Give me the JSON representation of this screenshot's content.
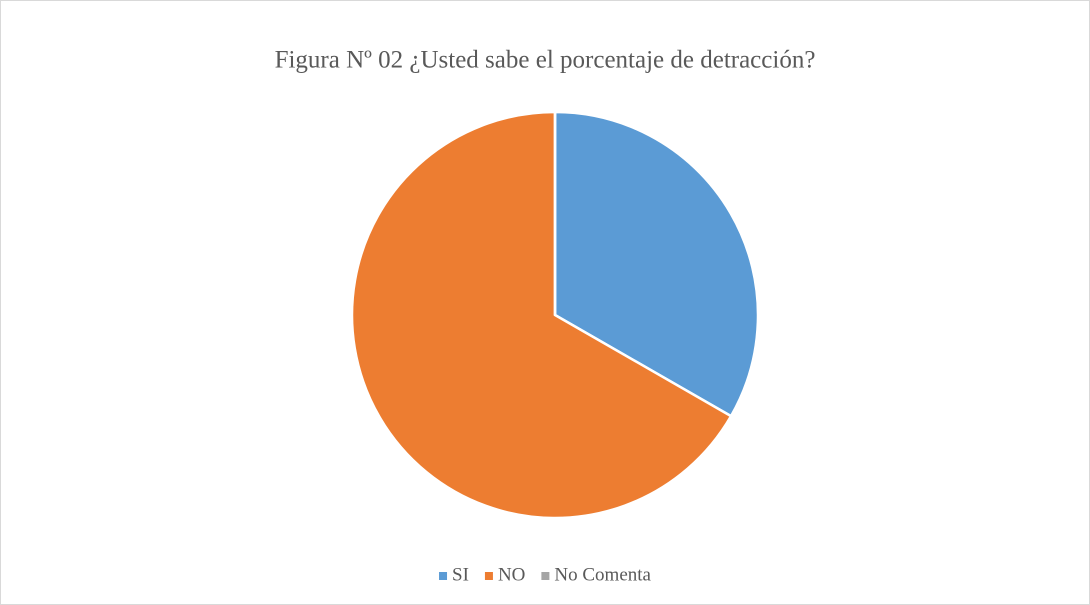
{
  "chart_data": {
    "type": "pie",
    "title": "Figura Nº 02 ¿Usted sabe el porcentaje de detracción?",
    "categories": [
      "SI",
      "NO",
      "No Comenta"
    ],
    "values": [
      33.3,
      66.7,
      0
    ],
    "colors": [
      "#5b9bd5",
      "#ed7d31",
      "#a5a5a5"
    ],
    "legend": "bottom"
  }
}
